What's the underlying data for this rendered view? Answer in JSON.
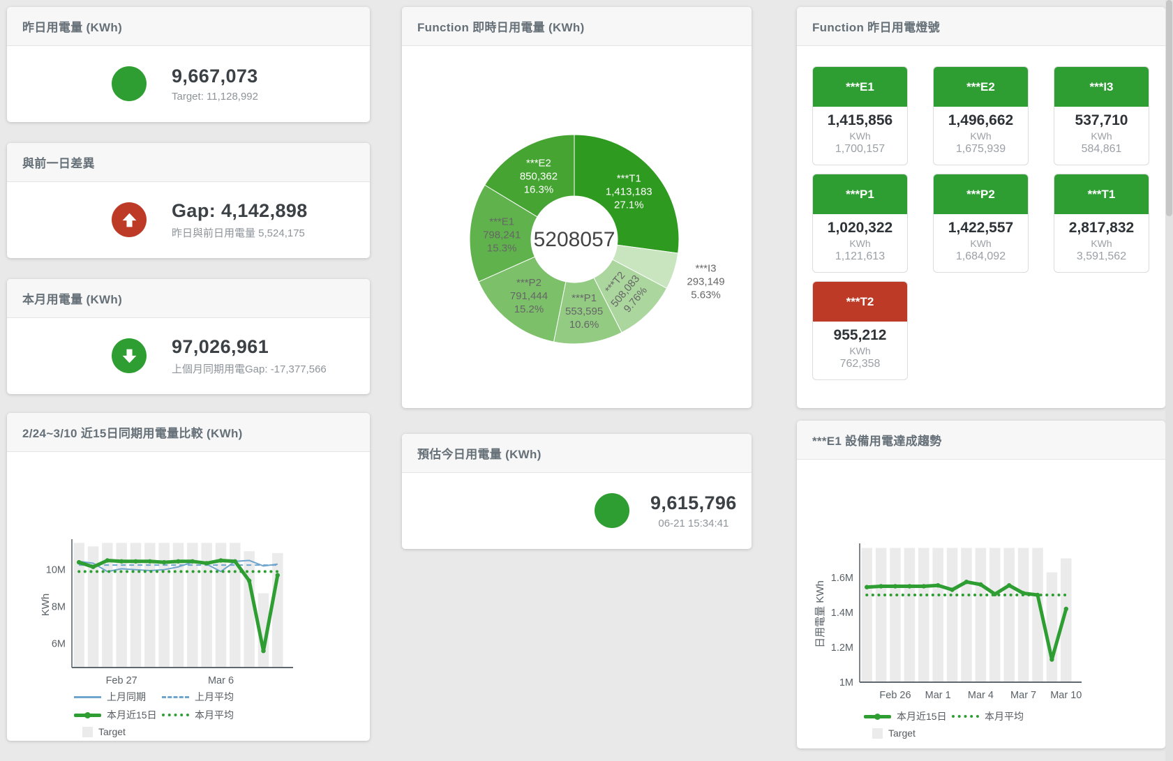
{
  "colors": {
    "green": "#2e9e33",
    "red": "#bd3b26",
    "blue": "#6fa5cc",
    "target_bar": "#ebebeb",
    "card_header_bg": "#f7f7f7"
  },
  "cards": {
    "yesterday": {
      "title": "昨日用電量 (KWh)",
      "value": "9,667,073",
      "subtitle": "Target: 11,128,992",
      "status": "green"
    },
    "prev_day_gap": {
      "title": "與前一日差異",
      "value": "Gap: 4,142,898",
      "subtitle": "昨日與前日用電量 5,524,175",
      "status": "red-up"
    },
    "month": {
      "title": "本月用電量 (KWh)",
      "value": "97,026,961",
      "subtitle": "上個月同期用電Gap: -17,377,566",
      "status": "green-down"
    },
    "estimate": {
      "title": "預估今日用電量 (KWh)",
      "value": "9,615,796",
      "subtitle": "06-21 15:34:41",
      "status": "green"
    }
  },
  "lights": {
    "title": "Function 昨日用電燈號",
    "unit": "KWh",
    "tiles": [
      {
        "name": "***E1",
        "value": "1,415,856",
        "target": "1,700,157",
        "status": "green"
      },
      {
        "name": "***E2",
        "value": "1,496,662",
        "target": "1,675,939",
        "status": "green"
      },
      {
        "name": "***I3",
        "value": "537,710",
        "target": "584,861",
        "status": "green"
      },
      {
        "name": "***P1",
        "value": "1,020,322",
        "target": "1,121,613",
        "status": "green"
      },
      {
        "name": "***P2",
        "value": "1,422,557",
        "target": "1,684,092",
        "status": "green"
      },
      {
        "name": "***T1",
        "value": "2,817,832",
        "target": "3,591,562",
        "status": "green"
      },
      {
        "name": "***T2",
        "value": "955,212",
        "target": "762,358",
        "status": "red"
      }
    ]
  },
  "chart_data": [
    {
      "type": "pie",
      "title": "Function 即時日用電量 (KWh)",
      "center_total": "5208057",
      "unit": "KWh",
      "slices": [
        {
          "label": "***T1",
          "value": 1413183,
          "value_str": "1,413,183",
          "pct": "27.1%",
          "color": "#2f9a20",
          "text": "light"
        },
        {
          "label": "***I3",
          "value": 293149,
          "value_str": "293,149",
          "pct": "5.63%",
          "color": "#c9e5c0",
          "text": "outside"
        },
        {
          "label": "***T2",
          "value": 508083,
          "value_str": "508,083",
          "pct": "9.76%",
          "color": "#abd79e",
          "text": "dark",
          "rotate": true
        },
        {
          "label": "***P1",
          "value": 553595,
          "value_str": "553,595",
          "pct": "10.6%",
          "color": "#93cb83",
          "text": "dark"
        },
        {
          "label": "***P2",
          "value": 791444,
          "value_str": "791,444",
          "pct": "15.2%",
          "color": "#7cc06a",
          "text": "dark"
        },
        {
          "label": "***E1",
          "value": 798241,
          "value_str": "798,241",
          "pct": "15.3%",
          "color": "#60b24c",
          "text": "dark"
        },
        {
          "label": "***E2",
          "value": 850362,
          "value_str": "850,362",
          "pct": "16.3%",
          "color": "#46a532",
          "text": "light"
        }
      ]
    },
    {
      "type": "line",
      "title": "2/24~3/10 近15日同期用電量比較 (KWh)",
      "ylabel": "KWh",
      "ylim": [
        4.7,
        11.5
      ],
      "grid": false,
      "legend_position": "bottom",
      "yticks": [
        {
          "v": 6,
          "label": "6M"
        },
        {
          "v": 8,
          "label": "8M"
        },
        {
          "v": 10,
          "label": "10M"
        }
      ],
      "xticks": [
        {
          "i": 3,
          "label": "Feb 27"
        },
        {
          "i": 10,
          "label": "Mar 6"
        }
      ],
      "target_bars": [
        11.45,
        11.26,
        11.45,
        11.45,
        11.45,
        11.45,
        11.45,
        11.45,
        11.45,
        11.45,
        11.45,
        11.45,
        11.0,
        8.72,
        10.9
      ],
      "series": [
        {
          "name": "上月同期",
          "style": "blue-solid",
          "values": [
            10.45,
            10.35,
            9.9,
            10.05,
            10.0,
            9.95,
            10.0,
            10.15,
            10.4,
            10.3,
            9.9,
            10.45,
            10.5,
            10.2,
            10.3
          ]
        },
        {
          "name": "上月平均",
          "style": "blue-dashed",
          "values": [
            10.25,
            10.25,
            10.25,
            10.25,
            10.25,
            10.25,
            10.25,
            10.25,
            10.25,
            10.25,
            10.25,
            10.25,
            10.25,
            10.25,
            10.25
          ]
        },
        {
          "name": "本月近15日",
          "style": "green-thick",
          "values": [
            10.4,
            10.15,
            10.5,
            10.45,
            10.45,
            10.45,
            10.4,
            10.45,
            10.45,
            10.35,
            10.5,
            10.45,
            9.4,
            5.6,
            9.7
          ]
        },
        {
          "name": "本月平均",
          "style": "green-dotted",
          "values": [
            9.9,
            9.9,
            9.9,
            9.9,
            9.9,
            9.9,
            9.9,
            9.9,
            9.9,
            9.9,
            9.9,
            9.9,
            9.9,
            9.9,
            9.9
          ]
        }
      ],
      "target_label": "Target"
    },
    {
      "type": "line",
      "title": "***E1 設備用電達成趨勢",
      "ylabel": "日用電量 KWh",
      "ylim": [
        1.0,
        1.78
      ],
      "grid": false,
      "legend_position": "bottom",
      "yticks": [
        {
          "v": 1,
          "label": "1M"
        },
        {
          "v": 1.2,
          "label": "1.2M"
        },
        {
          "v": 1.4,
          "label": "1.4M"
        },
        {
          "v": 1.6,
          "label": "1.6M"
        }
      ],
      "xticks": [
        {
          "i": 2,
          "label": "Feb 26"
        },
        {
          "i": 5,
          "label": "Mar 1"
        },
        {
          "i": 8,
          "label": "Mar 4"
        },
        {
          "i": 11,
          "label": "Mar 7"
        },
        {
          "i": 14,
          "label": "Mar 10"
        }
      ],
      "target_bars": [
        1.77,
        1.77,
        1.77,
        1.77,
        1.77,
        1.77,
        1.77,
        1.77,
        1.77,
        1.77,
        1.77,
        1.77,
        1.77,
        1.63,
        1.71
      ],
      "series": [
        {
          "name": "本月近15日",
          "style": "green-thick",
          "values": [
            1.545,
            1.55,
            1.55,
            1.55,
            1.55,
            1.555,
            1.53,
            1.575,
            1.56,
            1.505,
            1.555,
            1.51,
            1.5,
            1.13,
            1.42
          ]
        },
        {
          "name": "本月平均",
          "style": "green-dotted",
          "values": [
            1.5,
            1.5,
            1.5,
            1.5,
            1.5,
            1.5,
            1.5,
            1.5,
            1.5,
            1.5,
            1.5,
            1.5,
            1.5,
            1.5,
            1.5
          ]
        }
      ],
      "target_label": "Target"
    }
  ]
}
